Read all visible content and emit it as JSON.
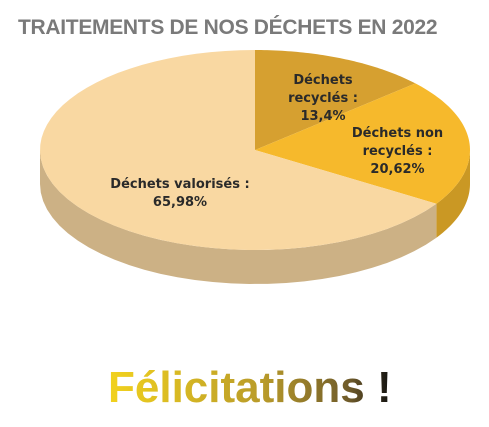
{
  "chart_data": {
    "type": "pie",
    "title": "TRAITEMENTS DE NOS DÉCHETS EN 2022",
    "values": [
      13.4,
      20.62,
      65.98
    ],
    "value_labels": [
      "Déchets recyclés : 13,4%",
      "Déchets non recyclés : 20,62%",
      "Déchets valorisés : 65,98%"
    ],
    "colors": [
      "#d6a030",
      "#f6b92c",
      "#f9d8a2"
    ],
    "footer": "Félicitations !"
  }
}
